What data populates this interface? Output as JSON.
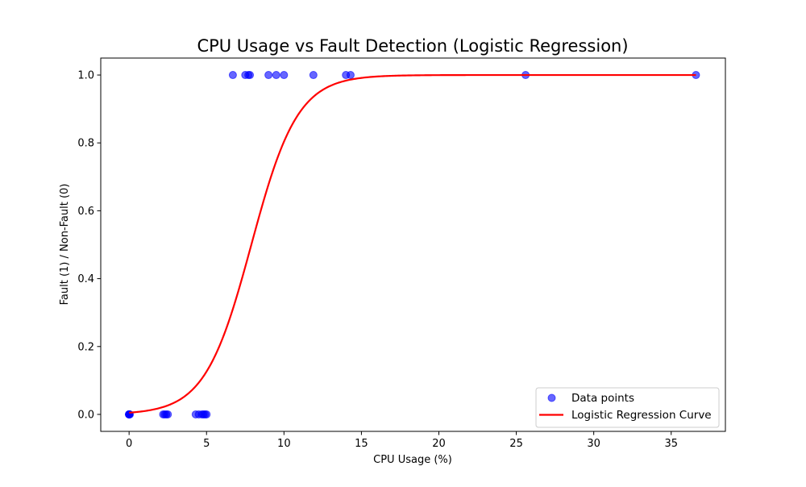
{
  "chart_data": {
    "type": "scatter",
    "title": "CPU Usage vs Fault Detection (Logistic Regression)",
    "xlabel": "CPU Usage (%)",
    "ylabel": "Fault (1) / Non-Fault (0)",
    "xlim": [
      -1.83,
      38.5
    ],
    "ylim": [
      -0.05,
      1.05
    ],
    "xticks": [
      0,
      5,
      10,
      15,
      20,
      25,
      30,
      35
    ],
    "yticks": [
      0.0,
      0.2,
      0.4,
      0.6,
      0.8,
      1.0
    ],
    "xtick_labels": [
      "0",
      "5",
      "10",
      "15",
      "20",
      "25",
      "30",
      "35"
    ],
    "ytick_labels": [
      "0.0",
      "0.2",
      "0.4",
      "0.6",
      "0.8",
      "1.0"
    ],
    "grid": false,
    "legend_position": "bottom-right",
    "legend": {
      "points_label": "Data points",
      "curve_label": "Logistic Regression Curve"
    },
    "series": [
      {
        "name": "Data points",
        "kind": "scatter",
        "color": "#0000ff",
        "x": [
          0,
          0,
          0,
          0,
          0,
          0.05,
          2.2,
          2.3,
          2.4,
          2.5,
          4.3,
          4.5,
          4.7,
          4.8,
          4.9,
          5.0,
          6.7,
          7.5,
          7.7,
          7.8,
          9.0,
          9.5,
          10.0,
          11.9,
          14.0,
          14.3,
          25.6,
          36.6
        ],
        "y": [
          0,
          0,
          0,
          0,
          0,
          0,
          0,
          0,
          0,
          0,
          0,
          0,
          0,
          0,
          0,
          0,
          1,
          1,
          1,
          1,
          1,
          1,
          1,
          1,
          1,
          1,
          1,
          1
        ]
      },
      {
        "name": "Logistic Regression Curve",
        "kind": "line",
        "color": "#ff0000",
        "model": "logistic",
        "intercept": -5.28,
        "slope": 0.669,
        "x_range": [
          0,
          36.6
        ]
      }
    ]
  }
}
